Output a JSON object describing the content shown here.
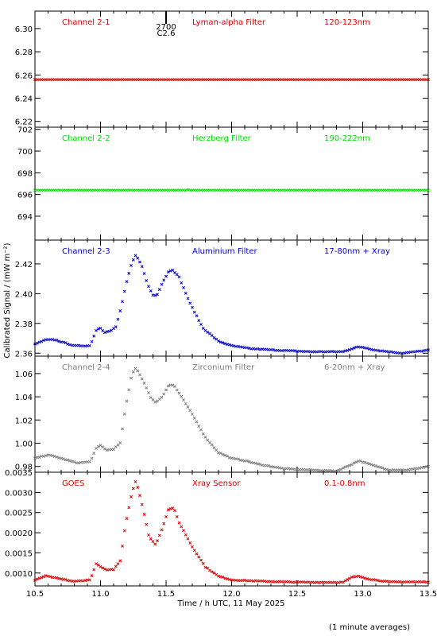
{
  "ylabel": "Calibrated Signal / (mW m⁻²)",
  "xlabel": "Time / h UTC, 11 May 2025",
  "footnote": "(1 minute averages)",
  "marker": {
    "x": 11.5,
    "label1": "2700",
    "label2": "C2.6"
  },
  "x_ticks": [
    "10.5",
    "11.0",
    "11.5",
    "12.0",
    "12.5",
    "13.0",
    "13.5"
  ],
  "chart_data": [
    {
      "type": "scatter",
      "channel": "Channel 2-1",
      "filter": "Lyman-alpha Filter",
      "band": "120-123nm",
      "color": "#dd0000",
      "xlim": [
        10.5,
        13.5
      ],
      "ylim": [
        6.215,
        6.315
      ],
      "yticks": [
        6.22,
        6.24,
        6.26,
        6.28,
        6.3
      ],
      "yticklabels": [
        "6.22",
        "6.24",
        "6.26",
        "6.28",
        "6.30"
      ],
      "profile": [
        [
          10.5,
          6.256
        ],
        [
          13.5,
          6.256
        ]
      ]
    },
    {
      "type": "scatter",
      "channel": "Channel 2-2",
      "filter": "Herzberg Filter",
      "band": "190-222nm",
      "color": "#00dd00",
      "xlim": [
        10.5,
        13.5
      ],
      "ylim": [
        691.8,
        702.2
      ],
      "yticks": [
        694,
        696,
        698,
        700,
        702
      ],
      "yticklabels": [
        "694",
        "696",
        "698",
        "700",
        "702"
      ],
      "profile": [
        [
          10.5,
          696.4
        ],
        [
          11.65,
          696.4
        ],
        [
          11.66,
          696.5
        ],
        [
          11.67,
          696.4
        ],
        [
          13.5,
          696.4
        ]
      ]
    },
    {
      "type": "scatter",
      "channel": "Channel 2-3",
      "filter": "Aluminium Filter",
      "band": "17-80nm + Xray",
      "color": "#0000cc",
      "xlim": [
        10.5,
        13.5
      ],
      "ylim": [
        2.358,
        2.436
      ],
      "yticks": [
        2.36,
        2.38,
        2.4,
        2.42
      ],
      "yticklabels": [
        "2.36",
        "2.38",
        "2.40",
        "2.42"
      ],
      "profile": [
        [
          10.5,
          2.366
        ],
        [
          10.58,
          2.369
        ],
        [
          10.65,
          2.369
        ],
        [
          10.8,
          2.365
        ],
        [
          10.92,
          2.365
        ],
        [
          10.97,
          2.376
        ],
        [
          11.0,
          2.377
        ],
        [
          11.03,
          2.374
        ],
        [
          11.08,
          2.375
        ],
        [
          11.12,
          2.378
        ],
        [
          11.16,
          2.392
        ],
        [
          11.2,
          2.408
        ],
        [
          11.24,
          2.421
        ],
        [
          11.27,
          2.426
        ],
        [
          11.31,
          2.42
        ],
        [
          11.36,
          2.406
        ],
        [
          11.4,
          2.399
        ],
        [
          11.43,
          2.399
        ],
        [
          11.47,
          2.407
        ],
        [
          11.52,
          2.415
        ],
        [
          11.55,
          2.416
        ],
        [
          11.6,
          2.411
        ],
        [
          11.68,
          2.394
        ],
        [
          11.78,
          2.377
        ],
        [
          11.9,
          2.368
        ],
        [
          12.0,
          2.365
        ],
        [
          12.15,
          2.363
        ],
        [
          12.35,
          2.362
        ],
        [
          12.6,
          2.361
        ],
        [
          12.85,
          2.361
        ],
        [
          12.95,
          2.364
        ],
        [
          13.0,
          2.364
        ],
        [
          13.1,
          2.362
        ],
        [
          13.3,
          2.36
        ],
        [
          13.5,
          2.362
        ]
      ]
    },
    {
      "type": "scatter",
      "channel": "Channel 2-4",
      "filter": "Zirconium Filter",
      "band": "6-20nm + Xray",
      "color": "#7f7f7f",
      "xlim": [
        10.5,
        13.5
      ],
      "ylim": [
        0.975,
        1.075
      ],
      "yticks": [
        0.98,
        1.0,
        1.02,
        1.04,
        1.06
      ],
      "yticklabels": [
        "0.98",
        "1.00",
        "1.02",
        "1.04",
        "1.06"
      ],
      "profile": [
        [
          10.5,
          0.987
        ],
        [
          10.6,
          0.99
        ],
        [
          10.7,
          0.987
        ],
        [
          10.82,
          0.983
        ],
        [
          10.92,
          0.984
        ],
        [
          10.97,
          0.996
        ],
        [
          11.0,
          0.998
        ],
        [
          11.05,
          0.994
        ],
        [
          11.1,
          0.995
        ],
        [
          11.15,
          1.0
        ],
        [
          11.19,
          1.03
        ],
        [
          11.24,
          1.06
        ],
        [
          11.27,
          1.065
        ],
        [
          11.32,
          1.055
        ],
        [
          11.38,
          1.04
        ],
        [
          11.42,
          1.035
        ],
        [
          11.47,
          1.04
        ],
        [
          11.52,
          1.05
        ],
        [
          11.56,
          1.05
        ],
        [
          11.6,
          1.043
        ],
        [
          11.7,
          1.025
        ],
        [
          11.8,
          1.005
        ],
        [
          11.9,
          0.992
        ],
        [
          12.0,
          0.987
        ],
        [
          12.1,
          0.985
        ],
        [
          12.2,
          0.982
        ],
        [
          12.4,
          0.978
        ],
        [
          12.6,
          0.977
        ],
        [
          12.8,
          0.976
        ],
        [
          12.92,
          0.982
        ],
        [
          12.97,
          0.985
        ],
        [
          13.05,
          0.982
        ],
        [
          13.2,
          0.977
        ],
        [
          13.35,
          0.977
        ],
        [
          13.5,
          0.98
        ]
      ]
    },
    {
      "type": "scatter",
      "channel": "GOES",
      "filter": "Xray Sensor",
      "band": "0.1-0.8nm",
      "color": "#dd0000",
      "xlim": [
        10.5,
        13.5
      ],
      "ylim": [
        0.00068,
        0.0035
      ],
      "yticks": [
        0.001,
        0.0015,
        0.002,
        0.0025,
        0.003,
        0.0035
      ],
      "yticklabels": [
        "0.0010",
        "0.0015",
        "0.0020",
        "0.0025",
        "0.0030",
        "0.0035"
      ],
      "profile": [
        [
          10.5,
          0.00082
        ],
        [
          10.58,
          0.00093
        ],
        [
          10.65,
          0.00088
        ],
        [
          10.8,
          0.00079
        ],
        [
          10.92,
          0.00083
        ],
        [
          10.97,
          0.00125
        ],
        [
          11.0,
          0.00115
        ],
        [
          11.05,
          0.00107
        ],
        [
          11.1,
          0.00109
        ],
        [
          11.15,
          0.0013
        ],
        [
          11.19,
          0.0022
        ],
        [
          11.24,
          0.003
        ],
        [
          11.27,
          0.0033
        ],
        [
          11.31,
          0.0028
        ],
        [
          11.37,
          0.0019
        ],
        [
          11.42,
          0.0017
        ],
        [
          11.47,
          0.0021
        ],
        [
          11.52,
          0.0026
        ],
        [
          11.56,
          0.0026
        ],
        [
          11.6,
          0.00225
        ],
        [
          11.7,
          0.00165
        ],
        [
          11.8,
          0.00115
        ],
        [
          11.9,
          0.00092
        ],
        [
          12.0,
          0.00083
        ],
        [
          12.2,
          0.0008
        ],
        [
          12.4,
          0.00078
        ],
        [
          12.6,
          0.00077
        ],
        [
          12.85,
          0.00077
        ],
        [
          12.92,
          0.0009
        ],
        [
          12.97,
          0.00092
        ],
        [
          13.05,
          0.00085
        ],
        [
          13.2,
          0.00078
        ],
        [
          13.35,
          0.00078
        ],
        [
          13.5,
          0.00078
        ]
      ]
    }
  ]
}
